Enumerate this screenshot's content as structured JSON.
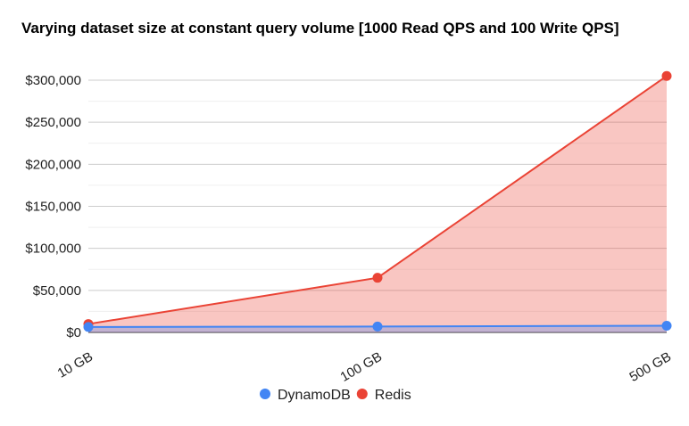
{
  "chart_data": {
    "type": "area",
    "title": "Varying dataset size at constant query volume [1000 Read QPS and 100 Write QPS]",
    "xlabel": "",
    "ylabel": "",
    "categories": [
      "10 GB",
      "100 GB",
      "500 GB"
    ],
    "y_tick_labels": [
      "$0",
      "$50,000",
      "$100,000",
      "$150,000",
      "$200,000",
      "$250,000",
      "$300,000"
    ],
    "ylim": [
      0,
      300000
    ],
    "y_ticks": [
      0,
      50000,
      100000,
      150000,
      200000,
      250000,
      300000
    ],
    "grid": true,
    "legend_position": "bottom",
    "series": [
      {
        "name": "DynamoDB",
        "values": [
          6500,
          7000,
          8000
        ],
        "color": "#4285f4"
      },
      {
        "name": "Redis",
        "values": [
          10000,
          65000,
          305000
        ],
        "color": "#ea4335"
      }
    ]
  }
}
